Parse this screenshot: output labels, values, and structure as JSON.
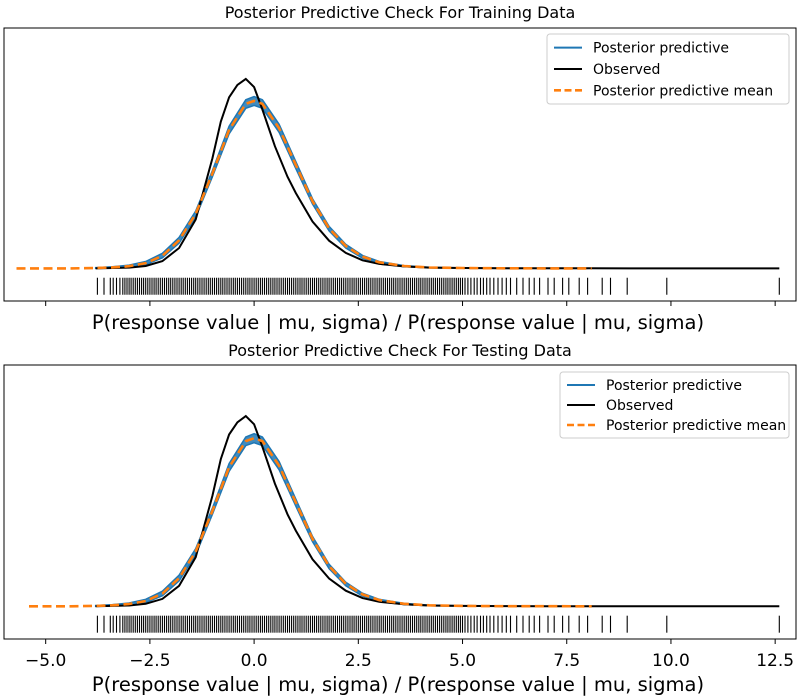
{
  "chart_data": [
    {
      "type": "line",
      "title": "Posterior Predictive Check For Training Data",
      "xlabel": "P(response value | mu, sigma) / P(response value | mu, sigma)",
      "ylabel": "",
      "xlim": [
        -6.0,
        13.0
      ],
      "ylim": [
        -0.08,
        0.59
      ],
      "xticks": [
        -5.0,
        -2.5,
        0.0,
        2.5,
        5.0,
        7.5,
        10.0,
        12.5
      ],
      "show_xtick_labels": false,
      "show_yticks": false,
      "grid": false,
      "legend": "top-right",
      "colors": {
        "predictive": "#1f77b4",
        "observed": "#000000",
        "mean": "#ff7f0e"
      },
      "series": [
        {
          "name": "Posterior predictive",
          "style": "band",
          "x": [
            -3.8,
            -3.4,
            -3.0,
            -2.6,
            -2.2,
            -1.8,
            -1.4,
            -1.0,
            -0.6,
            -0.2,
            0.0,
            0.2,
            0.6,
            1.0,
            1.4,
            1.8,
            2.2,
            2.6,
            3.0,
            3.6,
            4.2,
            5.0,
            6.0,
            7.0,
            8.0
          ],
          "lower": [
            0.0,
            0.001,
            0.003,
            0.009,
            0.026,
            0.062,
            0.126,
            0.225,
            0.33,
            0.393,
            0.4,
            0.393,
            0.334,
            0.245,
            0.158,
            0.092,
            0.05,
            0.025,
            0.012,
            0.004,
            0.0015,
            0.0005,
            0.0,
            0.0,
            0.0
          ],
          "upper": [
            0.002,
            0.004,
            0.008,
            0.017,
            0.037,
            0.076,
            0.141,
            0.24,
            0.349,
            0.414,
            0.422,
            0.414,
            0.354,
            0.262,
            0.171,
            0.103,
            0.059,
            0.032,
            0.017,
            0.007,
            0.003,
            0.0012,
            0.0005,
            0.0003,
            0.0002
          ]
        },
        {
          "name": "Observed",
          "style": "solid",
          "x": [
            -3.8,
            -3.4,
            -3.0,
            -2.6,
            -2.2,
            -1.8,
            -1.4,
            -1.0,
            -0.8,
            -0.6,
            -0.4,
            -0.2,
            0.0,
            0.2,
            0.5,
            0.8,
            1.0,
            1.4,
            1.8,
            2.2,
            2.6,
            3.0,
            3.6,
            4.2,
            5.0,
            6.0,
            7.0,
            8.0,
            9.0,
            10.0,
            11.0,
            12.0,
            12.6
          ],
          "y": [
            0.0,
            0.001,
            0.002,
            0.006,
            0.018,
            0.05,
            0.12,
            0.27,
            0.36,
            0.42,
            0.45,
            0.465,
            0.445,
            0.39,
            0.3,
            0.225,
            0.185,
            0.115,
            0.068,
            0.038,
            0.02,
            0.011,
            0.005,
            0.002,
            0.001,
            0.0005,
            0.0003,
            0.0002,
            0.0001,
            0.0,
            0.0,
            0.0,
            0.0
          ]
        },
        {
          "name": "Posterior predictive mean",
          "style": "dashed",
          "x": [
            -5.7,
            -5.0,
            -4.4,
            -3.8,
            -3.4,
            -3.0,
            -2.6,
            -2.2,
            -1.8,
            -1.4,
            -1.0,
            -0.6,
            -0.2,
            0.0,
            0.2,
            0.6,
            1.0,
            1.4,
            1.8,
            2.2,
            2.6,
            3.0,
            3.6,
            4.2,
            5.0,
            6.0,
            7.0,
            8.1
          ],
          "y": [
            0.0,
            0.0,
            0.0,
            0.001,
            0.0025,
            0.0055,
            0.013,
            0.031,
            0.069,
            0.134,
            0.233,
            0.34,
            0.404,
            0.411,
            0.404,
            0.344,
            0.254,
            0.165,
            0.098,
            0.055,
            0.029,
            0.015,
            0.006,
            0.0023,
            0.0009,
            0.0003,
            0.0001,
            0.0
          ]
        }
      ],
      "rug": {
        "y": -0.045,
        "values": [
          -3.76,
          -3.6,
          -3.45,
          -3.38,
          -3.3,
          -3.22,
          -3.15,
          -3.1,
          -3.05,
          -3.0,
          -2.95,
          -2.9,
          -2.85,
          -2.8,
          -2.75,
          -2.7,
          -2.65,
          -2.6,
          -2.55,
          -2.5,
          -2.45,
          -2.4,
          -2.35,
          -2.3,
          -2.25,
          -2.2,
          -2.15,
          -2.1,
          -2.05,
          -2.0,
          -1.95,
          -1.9,
          -1.85,
          -1.8,
          -1.75,
          -1.7,
          -1.65,
          -1.6,
          -1.55,
          -1.5,
          -1.45,
          -1.4,
          -1.35,
          -1.3,
          -1.25,
          -1.2,
          -1.15,
          -1.1,
          -1.05,
          -1.0,
          -0.95,
          -0.9,
          -0.85,
          -0.8,
          -0.75,
          -0.7,
          -0.65,
          -0.6,
          -0.55,
          -0.5,
          -0.45,
          -0.4,
          -0.35,
          -0.3,
          -0.25,
          -0.2,
          -0.15,
          -0.1,
          -0.05,
          0.0,
          0.05,
          0.1,
          0.15,
          0.2,
          0.25,
          0.3,
          0.35,
          0.4,
          0.45,
          0.5,
          0.55,
          0.6,
          0.65,
          0.7,
          0.75,
          0.8,
          0.85,
          0.9,
          0.95,
          1.0,
          1.05,
          1.1,
          1.15,
          1.2,
          1.25,
          1.3,
          1.35,
          1.4,
          1.45,
          1.5,
          1.55,
          1.6,
          1.65,
          1.7,
          1.75,
          1.8,
          1.85,
          1.9,
          1.95,
          2.0,
          2.05,
          2.1,
          2.15,
          2.2,
          2.25,
          2.3,
          2.35,
          2.4,
          2.45,
          2.5,
          2.55,
          2.6,
          2.65,
          2.7,
          2.75,
          2.8,
          2.85,
          2.9,
          2.95,
          3.0,
          3.05,
          3.1,
          3.15,
          3.2,
          3.25,
          3.3,
          3.35,
          3.4,
          3.45,
          3.5,
          3.55,
          3.6,
          3.65,
          3.7,
          3.75,
          3.8,
          3.85,
          3.9,
          3.95,
          4.0,
          4.05,
          4.1,
          4.15,
          4.2,
          4.25,
          4.3,
          4.35,
          4.4,
          4.45,
          4.5,
          4.55,
          4.6,
          4.65,
          4.7,
          4.75,
          4.8,
          4.85,
          4.9,
          4.95,
          5.0,
          5.06,
          5.13,
          5.2,
          5.28,
          5.35,
          5.43,
          5.5,
          5.58,
          5.66,
          5.75,
          5.85,
          5.95,
          6.05,
          6.15,
          6.3,
          6.45,
          6.6,
          6.72,
          6.85,
          7.05,
          7.2,
          7.4,
          7.55,
          7.8,
          8.0,
          8.35,
          8.55,
          8.95,
          9.9,
          12.6
        ]
      }
    },
    {
      "type": "line",
      "title": "Posterior Predictive Check For Testing Data",
      "xlabel": "P(response value | mu, sigma) / P(response value | mu, sigma)",
      "ylabel": "",
      "xlim": [
        -6.0,
        13.0
      ],
      "ylim": [
        -0.08,
        0.59
      ],
      "xticks": [
        -5.0,
        -2.5,
        0.0,
        2.5,
        5.0,
        7.5,
        10.0,
        12.5
      ],
      "xticklabels": [
        "−5.0",
        "−2.5",
        "0.0",
        "2.5",
        "5.0",
        "7.5",
        "10.0",
        "12.5"
      ],
      "show_xtick_labels": true,
      "show_yticks": false,
      "grid": false,
      "legend": "top-right",
      "colors": {
        "predictive": "#1f77b4",
        "observed": "#000000",
        "mean": "#ff7f0e"
      },
      "series": [
        {
          "name": "Posterior predictive",
          "style": "band",
          "x": [
            -3.8,
            -3.4,
            -3.0,
            -2.6,
            -2.2,
            -1.8,
            -1.4,
            -1.0,
            -0.6,
            -0.2,
            0.0,
            0.2,
            0.6,
            1.0,
            1.4,
            1.8,
            2.2,
            2.6,
            3.0,
            3.6,
            4.2,
            5.0,
            6.0,
            7.0,
            8.0
          ],
          "lower": [
            0.0,
            0.001,
            0.003,
            0.009,
            0.026,
            0.062,
            0.126,
            0.225,
            0.33,
            0.393,
            0.4,
            0.393,
            0.334,
            0.245,
            0.158,
            0.092,
            0.05,
            0.025,
            0.012,
            0.004,
            0.0015,
            0.0005,
            0.0,
            0.0,
            0.0
          ],
          "upper": [
            0.002,
            0.004,
            0.008,
            0.017,
            0.037,
            0.076,
            0.141,
            0.24,
            0.349,
            0.414,
            0.422,
            0.414,
            0.354,
            0.262,
            0.171,
            0.103,
            0.059,
            0.032,
            0.017,
            0.007,
            0.003,
            0.0012,
            0.0005,
            0.0003,
            0.0002
          ]
        },
        {
          "name": "Observed",
          "style": "solid",
          "x": [
            -3.8,
            -3.4,
            -3.0,
            -2.6,
            -2.2,
            -1.8,
            -1.4,
            -1.0,
            -0.8,
            -0.6,
            -0.4,
            -0.2,
            0.0,
            0.2,
            0.5,
            0.8,
            1.0,
            1.4,
            1.8,
            2.2,
            2.6,
            3.0,
            3.6,
            4.2,
            5.0,
            6.0,
            7.0,
            8.0,
            9.0,
            10.0,
            11.0,
            12.0,
            12.6
          ],
          "y": [
            0.0,
            0.001,
            0.002,
            0.006,
            0.018,
            0.05,
            0.12,
            0.27,
            0.36,
            0.42,
            0.45,
            0.465,
            0.445,
            0.39,
            0.3,
            0.225,
            0.185,
            0.115,
            0.068,
            0.038,
            0.02,
            0.011,
            0.005,
            0.002,
            0.001,
            0.0005,
            0.0003,
            0.0002,
            0.0001,
            0.0,
            0.0,
            0.0,
            0.0
          ]
        },
        {
          "name": "Posterior predictive mean",
          "style": "dashed",
          "x": [
            -5.4,
            -5.0,
            -4.4,
            -3.8,
            -3.4,
            -3.0,
            -2.6,
            -2.2,
            -1.8,
            -1.4,
            -1.0,
            -0.6,
            -0.2,
            0.0,
            0.2,
            0.6,
            1.0,
            1.4,
            1.8,
            2.2,
            2.6,
            3.0,
            3.6,
            4.2,
            5.0,
            6.0,
            7.0,
            8.1
          ],
          "y": [
            0.0,
            0.0,
            0.0,
            0.001,
            0.0025,
            0.0055,
            0.013,
            0.031,
            0.069,
            0.134,
            0.233,
            0.34,
            0.404,
            0.411,
            0.404,
            0.344,
            0.254,
            0.165,
            0.098,
            0.055,
            0.029,
            0.015,
            0.006,
            0.0023,
            0.0009,
            0.0003,
            0.0001,
            0.0
          ]
        }
      ],
      "rug": {
        "y": -0.045,
        "values": [
          -3.76,
          -3.6,
          -3.45,
          -3.38,
          -3.3,
          -3.22,
          -3.15,
          -3.1,
          -3.05,
          -3.0,
          -2.95,
          -2.9,
          -2.85,
          -2.8,
          -2.75,
          -2.7,
          -2.65,
          -2.6,
          -2.55,
          -2.5,
          -2.45,
          -2.4,
          -2.35,
          -2.3,
          -2.25,
          -2.2,
          -2.15,
          -2.1,
          -2.05,
          -2.0,
          -1.95,
          -1.9,
          -1.85,
          -1.8,
          -1.75,
          -1.7,
          -1.65,
          -1.6,
          -1.55,
          -1.5,
          -1.45,
          -1.4,
          -1.35,
          -1.3,
          -1.25,
          -1.2,
          -1.15,
          -1.1,
          -1.05,
          -1.0,
          -0.95,
          -0.9,
          -0.85,
          -0.8,
          -0.75,
          -0.7,
          -0.65,
          -0.6,
          -0.55,
          -0.5,
          -0.45,
          -0.4,
          -0.35,
          -0.3,
          -0.25,
          -0.2,
          -0.15,
          -0.1,
          -0.05,
          0.0,
          0.05,
          0.1,
          0.15,
          0.2,
          0.25,
          0.3,
          0.35,
          0.4,
          0.45,
          0.5,
          0.55,
          0.6,
          0.65,
          0.7,
          0.75,
          0.8,
          0.85,
          0.9,
          0.95,
          1.0,
          1.05,
          1.1,
          1.15,
          1.2,
          1.25,
          1.3,
          1.35,
          1.4,
          1.45,
          1.5,
          1.55,
          1.6,
          1.65,
          1.7,
          1.75,
          1.8,
          1.85,
          1.9,
          1.95,
          2.0,
          2.05,
          2.1,
          2.15,
          2.2,
          2.25,
          2.3,
          2.35,
          2.4,
          2.45,
          2.5,
          2.55,
          2.6,
          2.65,
          2.7,
          2.75,
          2.8,
          2.85,
          2.9,
          2.95,
          3.0,
          3.05,
          3.1,
          3.15,
          3.2,
          3.25,
          3.3,
          3.35,
          3.4,
          3.45,
          3.5,
          3.55,
          3.6,
          3.65,
          3.7,
          3.75,
          3.8,
          3.85,
          3.9,
          3.95,
          4.0,
          4.05,
          4.1,
          4.15,
          4.2,
          4.25,
          4.3,
          4.35,
          4.4,
          4.45,
          4.5,
          4.55,
          4.6,
          4.65,
          4.7,
          4.75,
          4.8,
          4.85,
          4.9,
          4.95,
          5.0,
          5.06,
          5.13,
          5.2,
          5.28,
          5.35,
          5.43,
          5.5,
          5.58,
          5.66,
          5.75,
          5.85,
          5.95,
          6.05,
          6.15,
          6.3,
          6.45,
          6.6,
          6.72,
          6.85,
          7.05,
          7.2,
          7.4,
          7.55,
          7.8,
          8.0,
          8.35,
          8.55,
          8.95,
          9.9,
          12.6
        ]
      }
    }
  ]
}
